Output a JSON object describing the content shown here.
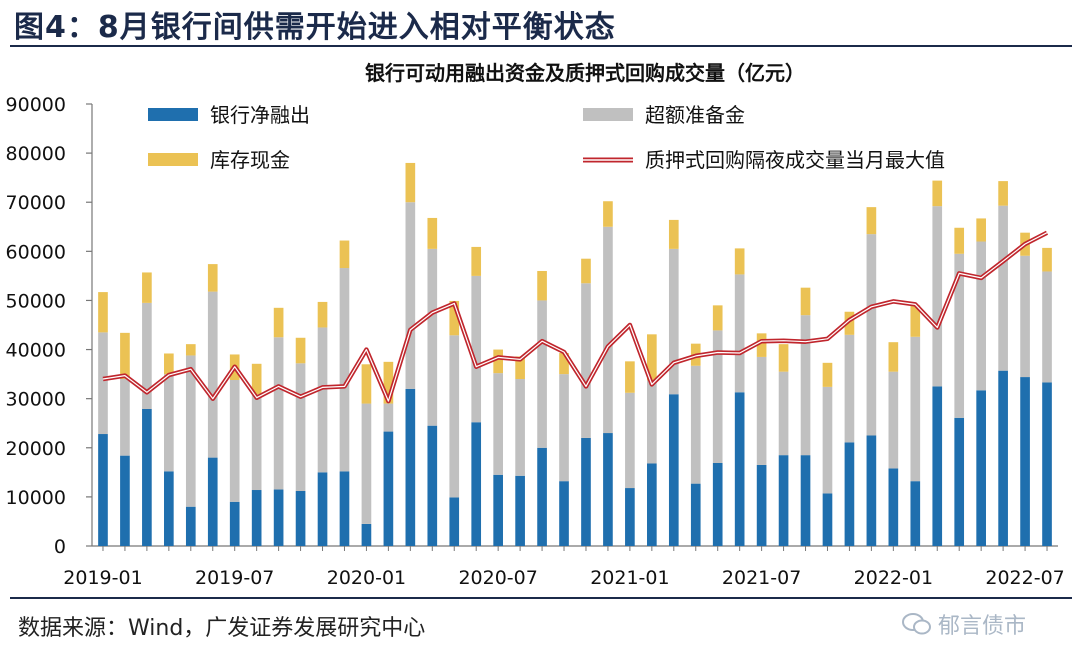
{
  "figure_title": "图4：8月银行间供需开始进入相对平衡状态",
  "source": "数据来源：Wind，广发证券发展研究中心",
  "watermark": "郁言债市",
  "colors": {
    "net_financing": "#1f6fae",
    "excess_reserve": "#c0c0c0",
    "cash": "#ebc254",
    "repo_line": "#c0262d",
    "repo_line_inner": "#ffffff"
  },
  "chart_data": {
    "type": "bar",
    "stacked": true,
    "title": "银行可动用融出资金及质押式回购成交量（亿元）",
    "ylim": [
      0,
      90000
    ],
    "yticks": [
      "0",
      "10000",
      "20000",
      "30000",
      "40000",
      "50000",
      "60000",
      "70000",
      "80000",
      "90000"
    ],
    "x_tick_labels": [
      {
        "label": "2019-01",
        "index": 0
      },
      {
        "label": "2019-07",
        "index": 6
      },
      {
        "label": "2020-01",
        "index": 12
      },
      {
        "label": "2020-07",
        "index": 18
      },
      {
        "label": "2021-01",
        "index": 24
      },
      {
        "label": "2021-07",
        "index": 30
      },
      {
        "label": "2022-01",
        "index": 36
      },
      {
        "label": "2022-07",
        "index": 42
      }
    ],
    "categories": [
      "2019-01",
      "2019-02",
      "2019-03",
      "2019-04",
      "2019-05",
      "2019-06",
      "2019-07",
      "2019-08",
      "2019-09",
      "2019-10",
      "2019-11",
      "2019-12",
      "2020-01",
      "2020-02",
      "2020-03",
      "2020-04",
      "2020-05",
      "2020-06",
      "2020-07",
      "2020-08",
      "2020-09",
      "2020-10",
      "2020-11",
      "2020-12",
      "2021-01",
      "2021-02",
      "2021-03",
      "2021-04",
      "2021-05",
      "2021-06",
      "2021-07",
      "2021-08",
      "2021-09",
      "2021-10",
      "2021-11",
      "2021-12",
      "2022-01",
      "2022-02",
      "2022-03",
      "2022-04",
      "2022-05",
      "2022-06",
      "2022-07",
      "2022-08"
    ],
    "series": [
      {
        "name": "银行净融出",
        "kind": "bar",
        "values": [
          22800,
          18400,
          27900,
          15200,
          8000,
          18000,
          9000,
          11400,
          11500,
          11200,
          15000,
          15200,
          4500,
          23300,
          32000,
          24500,
          9900,
          25200,
          14500,
          14300,
          20000,
          13200,
          22000,
          23000,
          11800,
          16800,
          30900,
          12700,
          16900,
          31300,
          16500,
          18500,
          18500,
          10700,
          21100,
          22500,
          15800,
          13200,
          32500,
          26100,
          31700,
          35700,
          34400,
          33300
        ]
      },
      {
        "name": "超额准备金",
        "kind": "bar",
        "values": [
          20700,
          15600,
          21600,
          19800,
          30800,
          33800,
          24800,
          19500,
          31000,
          26000,
          29500,
          41400,
          24500,
          5700,
          38000,
          36000,
          33000,
          29800,
          20700,
          19700,
          30000,
          21800,
          31500,
          42000,
          19400,
          16900,
          29600,
          24000,
          27000,
          24000,
          22000,
          17000,
          28500,
          21700,
          21900,
          41000,
          19700,
          29400,
          36700,
          33400,
          30300,
          33600,
          24700,
          22600
        ]
      },
      {
        "name": "库存现金",
        "kind": "bar",
        "values": [
          8200,
          9400,
          6200,
          4200,
          2300,
          5600,
          5200,
          6200,
          6000,
          5200,
          5200,
          5600,
          8000,
          8500,
          8000,
          6300,
          7000,
          5900,
          4800,
          4600,
          6000,
          4300,
          5000,
          5200,
          6400,
          9400,
          5900,
          4500,
          5100,
          5300,
          4800,
          5600,
          5600,
          4900,
          4700,
          5500,
          6000,
          6400,
          5200,
          5300,
          4700,
          5000,
          4700,
          4800
        ]
      },
      {
        "name": "质押式回购隔夜成交量当月最大值",
        "kind": "line",
        "values": [
          34000,
          34700,
          31300,
          34800,
          36000,
          30000,
          36500,
          30200,
          32500,
          30400,
          32300,
          32500,
          40000,
          29500,
          44000,
          47500,
          49400,
          36500,
          38400,
          38000,
          41700,
          39500,
          32500,
          40600,
          45000,
          32900,
          37300,
          38700,
          39400,
          39300,
          41700,
          41800,
          41600,
          42200,
          46000,
          48700,
          49800,
          49200,
          44500,
          55500,
          54600,
          58000,
          61500,
          63800
        ]
      }
    ]
  }
}
